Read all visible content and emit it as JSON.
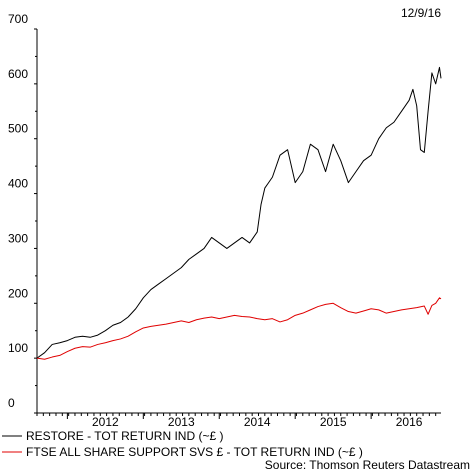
{
  "chart_data": {
    "type": "line",
    "date_label": "12/9/16",
    "source": "Source: Thomson Reuters Datastream",
    "ylim": [
      0,
      700
    ],
    "y_ticks": [
      0,
      100,
      200,
      300,
      400,
      500,
      600,
      700
    ],
    "xlim": [
      2011.1,
      2016.42
    ],
    "x_ticks": [
      {
        "label": "2012",
        "value": 2012.0
      },
      {
        "label": "2013",
        "value": 2013.0
      },
      {
        "label": "2014",
        "value": 2014.0
      },
      {
        "label": "2015",
        "value": 2015.0
      },
      {
        "label": "2016",
        "value": 2016.0
      }
    ],
    "grid": false,
    "legend_position": "bottom",
    "series": [
      {
        "name": "RESTORE - TOT RETURN IND (~£ )",
        "color": "#000000",
        "x": [
          2011.1,
          2011.2,
          2011.3,
          2011.4,
          2011.5,
          2011.6,
          2011.7,
          2011.8,
          2011.9,
          2012.0,
          2012.1,
          2012.2,
          2012.3,
          2012.4,
          2012.5,
          2012.6,
          2012.7,
          2012.8,
          2012.9,
          2013.0,
          2013.1,
          2013.2,
          2013.3,
          2013.4,
          2013.5,
          2013.6,
          2013.7,
          2013.8,
          2013.9,
          2014.0,
          2014.05,
          2014.1,
          2014.15,
          2014.2,
          2014.3,
          2014.4,
          2014.5,
          2014.6,
          2014.7,
          2014.8,
          2014.9,
          2015.0,
          2015.1,
          2015.2,
          2015.3,
          2015.4,
          2015.5,
          2015.6,
          2015.7,
          2015.8,
          2015.9,
          2016.0,
          2016.05,
          2016.1,
          2016.15,
          2016.2,
          2016.25,
          2016.3,
          2016.35,
          2016.4,
          2016.42
        ],
        "values": [
          100,
          110,
          125,
          128,
          132,
          138,
          140,
          138,
          142,
          150,
          160,
          165,
          175,
          190,
          210,
          225,
          235,
          245,
          255,
          265,
          280,
          290,
          300,
          320,
          310,
          300,
          310,
          320,
          310,
          330,
          380,
          410,
          420,
          430,
          470,
          480,
          420,
          440,
          490,
          480,
          440,
          490,
          460,
          420,
          440,
          460,
          470,
          500,
          520,
          530,
          550,
          570,
          590,
          560,
          480,
          475,
          550,
          620,
          600,
          630,
          610
        ]
      },
      {
        "name": "FTSE ALL SHARE SUPPORT SVS £ - TOT RETURN IND (~£ )",
        "color": "#e00000",
        "x": [
          2011.1,
          2011.2,
          2011.3,
          2011.4,
          2011.5,
          2011.6,
          2011.7,
          2011.8,
          2011.9,
          2012.0,
          2012.1,
          2012.2,
          2012.3,
          2012.4,
          2012.5,
          2012.6,
          2012.7,
          2012.8,
          2012.9,
          2013.0,
          2013.1,
          2013.2,
          2013.3,
          2013.4,
          2013.5,
          2013.6,
          2013.7,
          2013.8,
          2013.9,
          2014.0,
          2014.1,
          2014.2,
          2014.3,
          2014.4,
          2014.5,
          2014.6,
          2014.7,
          2014.8,
          2014.9,
          2015.0,
          2015.1,
          2015.2,
          2015.3,
          2015.4,
          2015.5,
          2015.6,
          2015.7,
          2015.8,
          2015.9,
          2016.0,
          2016.1,
          2016.2,
          2016.25,
          2016.3,
          2016.35,
          2016.4,
          2016.42
        ],
        "values": [
          100,
          98,
          102,
          105,
          112,
          118,
          121,
          120,
          125,
          128,
          132,
          135,
          140,
          148,
          155,
          158,
          160,
          162,
          165,
          168,
          165,
          170,
          173,
          175,
          172,
          175,
          178,
          176,
          175,
          172,
          170,
          172,
          166,
          170,
          178,
          182,
          188,
          194,
          198,
          200,
          192,
          185,
          182,
          186,
          190,
          188,
          182,
          185,
          188,
          190,
          192,
          195,
          180,
          196,
          200,
          210,
          208
        ]
      }
    ]
  }
}
